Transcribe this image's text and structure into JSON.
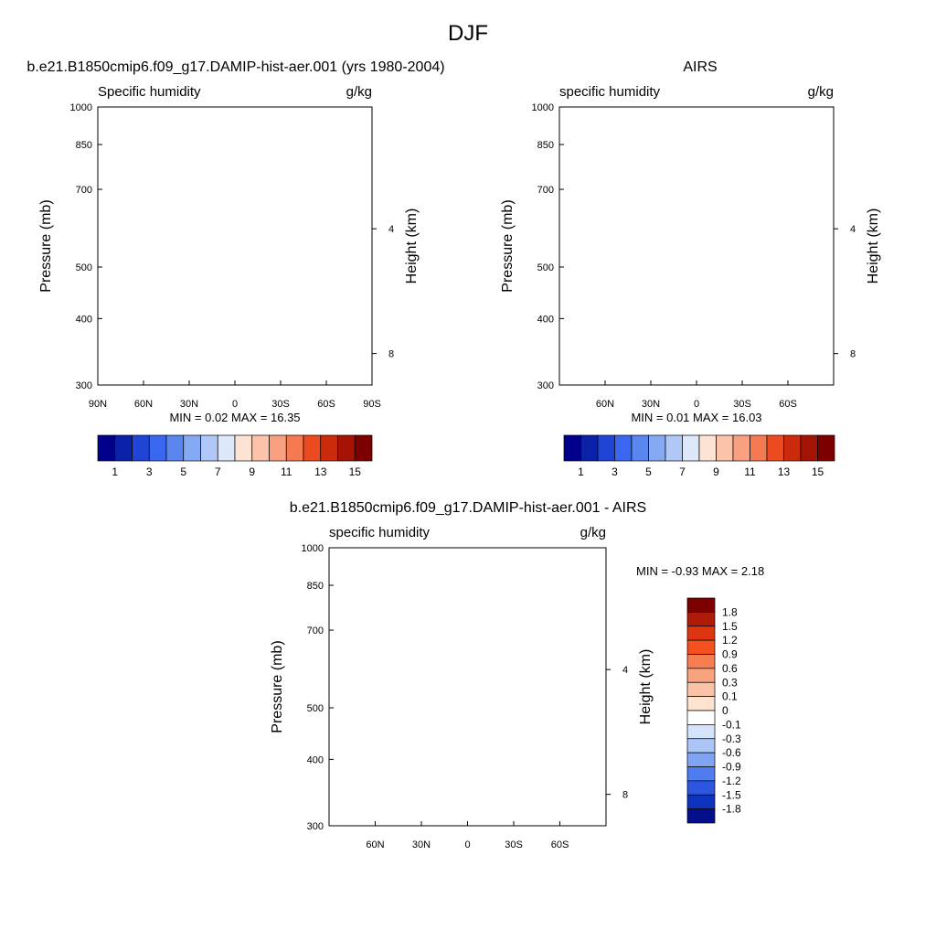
{
  "figure": {
    "title": "DJF"
  },
  "chart_data": [
    {
      "type": "heatmap",
      "title": "b.e21.B1850cmip6.f09_g17.DAMIP-hist-aer.001 (yrs 1980-2004)",
      "left_label": "Specific humidity",
      "right_label": "g/kg",
      "ylabel": "Pressure (mb)",
      "ylabel_right": "Height (km)",
      "x_ticks": [
        "90N",
        "60N",
        "30N",
        "0",
        "30S",
        "60S",
        "90S"
      ],
      "x_tick_values": [
        90,
        60,
        30,
        0,
        -30,
        -60,
        -90
      ],
      "y_ticks": [
        "300",
        "400",
        "500",
        "700",
        "850",
        "1000"
      ],
      "y_tick_values": [
        300,
        400,
        500,
        700,
        850,
        1000
      ],
      "height_ticks": [
        "8",
        "4"
      ],
      "height_tick_values": [
        8,
        4
      ],
      "xlim": [
        90,
        -90
      ],
      "ylim": [
        1000,
        300
      ],
      "y_scale": "log",
      "stats": {
        "min_label": "MIN =",
        "min": "0.02",
        "max_label": "MAX =",
        "max": "16.35"
      },
      "colorbar": {
        "labels": [
          "1",
          "3",
          "5",
          "7",
          "9",
          "11",
          "13",
          "15"
        ],
        "levels": [
          1,
          3,
          5,
          7,
          9,
          11,
          13,
          15
        ],
        "orientation": "horizontal"
      }
    },
    {
      "type": "heatmap",
      "title": "AIRS",
      "left_label": "specific humidity",
      "right_label": "g/kg",
      "ylabel": "Pressure (mb)",
      "ylabel_right": "Height (km)",
      "x_ticks": [
        "60N",
        "30N",
        "0",
        "30S",
        "60S"
      ],
      "x_tick_values": [
        60,
        30,
        0,
        -30,
        -60
      ],
      "y_ticks": [
        "300",
        "400",
        "500",
        "700",
        "850",
        "1000"
      ],
      "y_tick_values": [
        300,
        400,
        500,
        700,
        850,
        1000
      ],
      "height_ticks": [
        "8",
        "4"
      ],
      "height_tick_values": [
        8,
        4
      ],
      "xlim": [
        90,
        -90
      ],
      "ylim": [
        1000,
        300
      ],
      "y_scale": "log",
      "stats": {
        "min_label": "MIN =",
        "min": "0.01",
        "max_label": "MAX =",
        "max": "16.03"
      },
      "colorbar": {
        "labels": [
          "1",
          "3",
          "5",
          "7",
          "9",
          "11",
          "13",
          "15"
        ],
        "levels": [
          1,
          3,
          5,
          7,
          9,
          11,
          13,
          15
        ],
        "orientation": "horizontal"
      }
    },
    {
      "type": "heatmap",
      "title": "b.e21.B1850cmip6.f09_g17.DAMIP-hist-aer.001 - AIRS",
      "left_label": "specific humidity",
      "right_label": "g/kg",
      "ylabel": "Pressure (mb)",
      "ylabel_right": "Height (km)",
      "x_ticks": [
        "60N",
        "30N",
        "0",
        "30S",
        "60S"
      ],
      "x_tick_values": [
        60,
        30,
        0,
        -30,
        -60
      ],
      "y_ticks": [
        "300",
        "400",
        "500",
        "700",
        "850",
        "1000"
      ],
      "y_tick_values": [
        300,
        400,
        500,
        700,
        850,
        1000
      ],
      "height_ticks": [
        "8",
        "4"
      ],
      "height_tick_values": [
        8,
        4
      ],
      "xlim": [
        90,
        -90
      ],
      "ylim": [
        1000,
        300
      ],
      "y_scale": "log",
      "stats": {
        "min_label": "MIN =",
        "min": "-0.93",
        "max_label": "MAX =",
        "max": "2.18"
      },
      "colorbar": {
        "labels": [
          "1.8",
          "1.5",
          "1.2",
          "0.9",
          "0.6",
          "0.3",
          "0.1",
          "0",
          "-0.1",
          "-0.3",
          "-0.6",
          "-0.9",
          "-1.2",
          "-1.5",
          "-1.8"
        ],
        "levels": [
          1.8,
          1.5,
          1.2,
          0.9,
          0.6,
          0.3,
          0.1,
          0,
          -0.1,
          -0.3,
          -0.6,
          -0.9,
          -1.2,
          -1.5,
          -1.8
        ],
        "orientation": "vertical"
      }
    }
  ],
  "palettes": {
    "humidity": [
      "#00008b",
      "#0a21a8",
      "#1f44d6",
      "#3a67f0",
      "#5a86f0",
      "#86a9f4",
      "#b0c8f8",
      "#dde8fb",
      "#fde3d4",
      "#fcc3ab",
      "#f8a07f",
      "#f47a52",
      "#ec4b22",
      "#cc2a0d",
      "#a51305",
      "#7d0000"
    ],
    "difference": [
      "#7d0000",
      "#b01a08",
      "#de3510",
      "#f5511f",
      "#f67e50",
      "#f8a37e",
      "#fac2a6",
      "#fde3d0",
      "#ffffff",
      "#d6e4fb",
      "#abc6f6",
      "#80a4f2",
      "#4f7cee",
      "#2a56e0",
      "#0d33bd",
      "#050f8e"
    ]
  }
}
